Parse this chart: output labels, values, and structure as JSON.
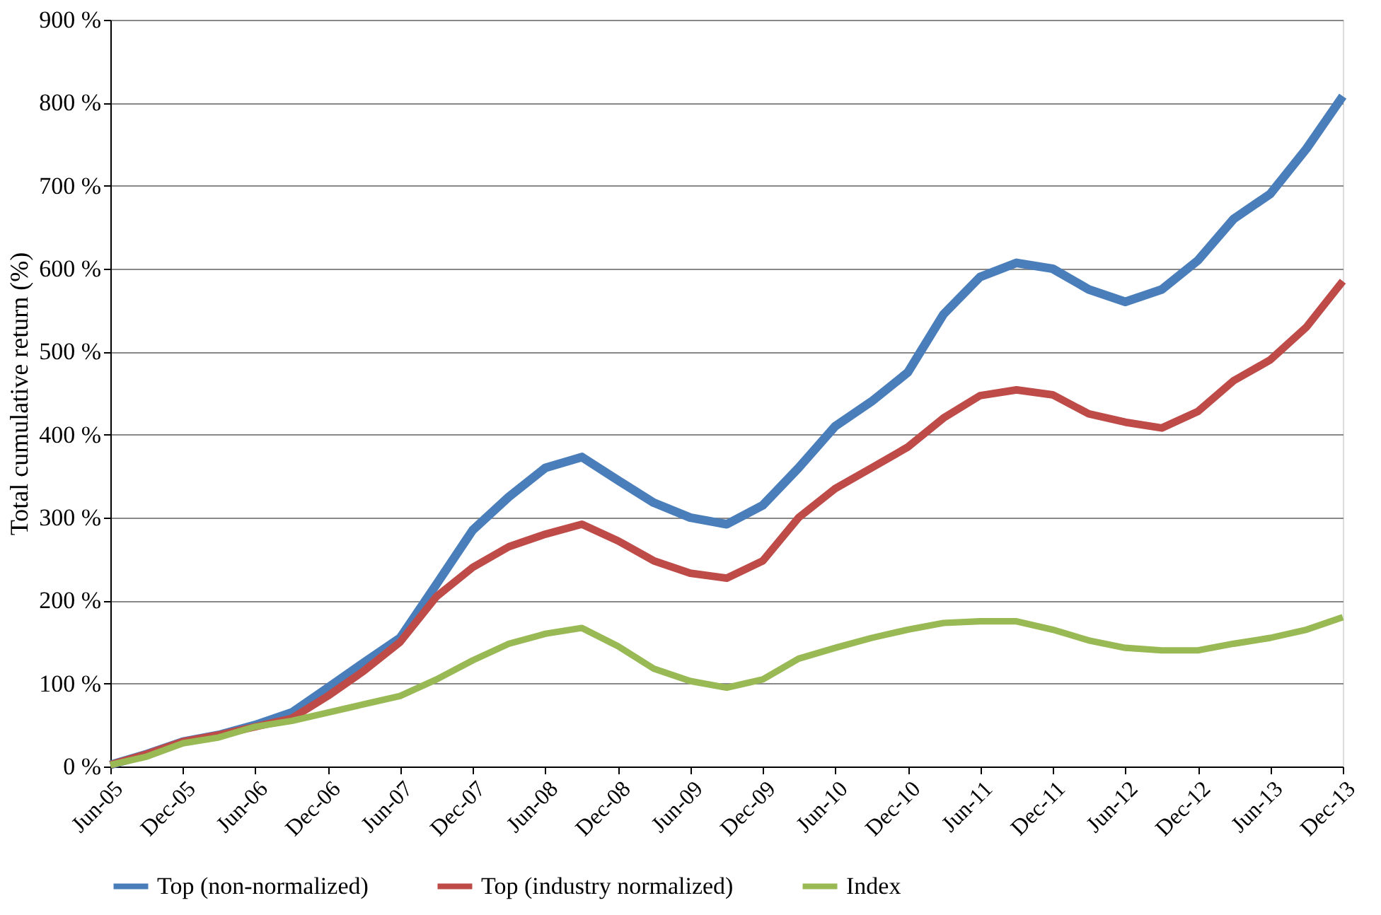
{
  "chart_data": {
    "type": "line",
    "ylabel": "Total cumulative return (%)",
    "x": [
      "2005-06",
      "2005-09",
      "2005-12",
      "2006-03",
      "2006-06",
      "2006-09",
      "2006-12",
      "2007-03",
      "2007-06",
      "2007-09",
      "2007-12",
      "2008-03",
      "2008-06",
      "2008-09",
      "2008-12",
      "2009-03",
      "2009-06",
      "2009-09",
      "2009-12",
      "2010-03",
      "2010-06",
      "2010-09",
      "2010-12",
      "2011-03",
      "2011-06",
      "2011-09",
      "2011-12",
      "2012-03",
      "2012-06",
      "2012-09",
      "2012-12",
      "2013-03",
      "2013-06",
      "2013-09",
      "2013-12"
    ],
    "series": [
      {
        "name": "Top (non-normalized)",
        "color": "#4a7ebb",
        "values": [
          2,
          15,
          30,
          38,
          50,
          65,
          95,
          125,
          155,
          220,
          285,
          325,
          360,
          373,
          345,
          318,
          300,
          292,
          315,
          360,
          410,
          440,
          475,
          545,
          590,
          607,
          600,
          575,
          560,
          575,
          610,
          660,
          690,
          745,
          808
        ]
      },
      {
        "name": "Top (industry normalized)",
        "color": "#be4b48",
        "values": [
          2,
          15,
          30,
          38,
          48,
          58,
          85,
          115,
          150,
          205,
          240,
          265,
          280,
          292,
          272,
          248,
          233,
          227,
          248,
          300,
          335,
          360,
          385,
          420,
          447,
          454,
          448,
          425,
          415,
          408,
          428,
          465,
          490,
          530,
          585
        ]
      },
      {
        "name": "Index",
        "color": "#98b954",
        "values": [
          2,
          12,
          28,
          35,
          48,
          55,
          65,
          75,
          85,
          105,
          128,
          148,
          160,
          167,
          145,
          118,
          103,
          95,
          105,
          130,
          143,
          155,
          165,
          173,
          175,
          175,
          165,
          152,
          143,
          140,
          140,
          148,
          155,
          165,
          180
        ]
      }
    ],
    "xlim": [
      "2005-06",
      "2013-12"
    ],
    "xticks": [
      {
        "value": "2005-06",
        "label": "Jun-05"
      },
      {
        "value": "2005-12",
        "label": "Dec-05"
      },
      {
        "value": "2006-06",
        "label": "Jun-06"
      },
      {
        "value": "2006-12",
        "label": "Dec-06"
      },
      {
        "value": "2007-06",
        "label": "Jun-07"
      },
      {
        "value": "2007-12",
        "label": "Dec-07"
      },
      {
        "value": "2008-06",
        "label": "Jun-08"
      },
      {
        "value": "2008-12",
        "label": "Dec-08"
      },
      {
        "value": "2009-06",
        "label": "Jun-09"
      },
      {
        "value": "2009-12",
        "label": "Dec-09"
      },
      {
        "value": "2010-06",
        "label": "Jun-10"
      },
      {
        "value": "2010-12",
        "label": "Dec-10"
      },
      {
        "value": "2011-06",
        "label": "Jun-11"
      },
      {
        "value": "2011-12",
        "label": "Dec-11"
      },
      {
        "value": "2012-06",
        "label": "Jun-12"
      },
      {
        "value": "2012-12",
        "label": "Dec-12"
      },
      {
        "value": "2013-06",
        "label": "Jun-13"
      },
      {
        "value": "2013-12",
        "label": "Dec-13"
      }
    ],
    "ylim": [
      0,
      900
    ],
    "yticks": [
      {
        "value": 0,
        "label": "0 %"
      },
      {
        "value": 100,
        "label": "100 %"
      },
      {
        "value": 200,
        "label": "200 %"
      },
      {
        "value": 300,
        "label": "300 %"
      },
      {
        "value": 400,
        "label": "400 %"
      },
      {
        "value": 500,
        "label": "500 %"
      },
      {
        "value": 600,
        "label": "600 %"
      },
      {
        "value": 700,
        "label": "700 %"
      },
      {
        "value": 800,
        "label": "800 %"
      },
      {
        "value": 900,
        "label": "900 %"
      }
    ],
    "grid": "y",
    "legend": "bottom",
    "marker": "none",
    "line_style": "solid"
  }
}
